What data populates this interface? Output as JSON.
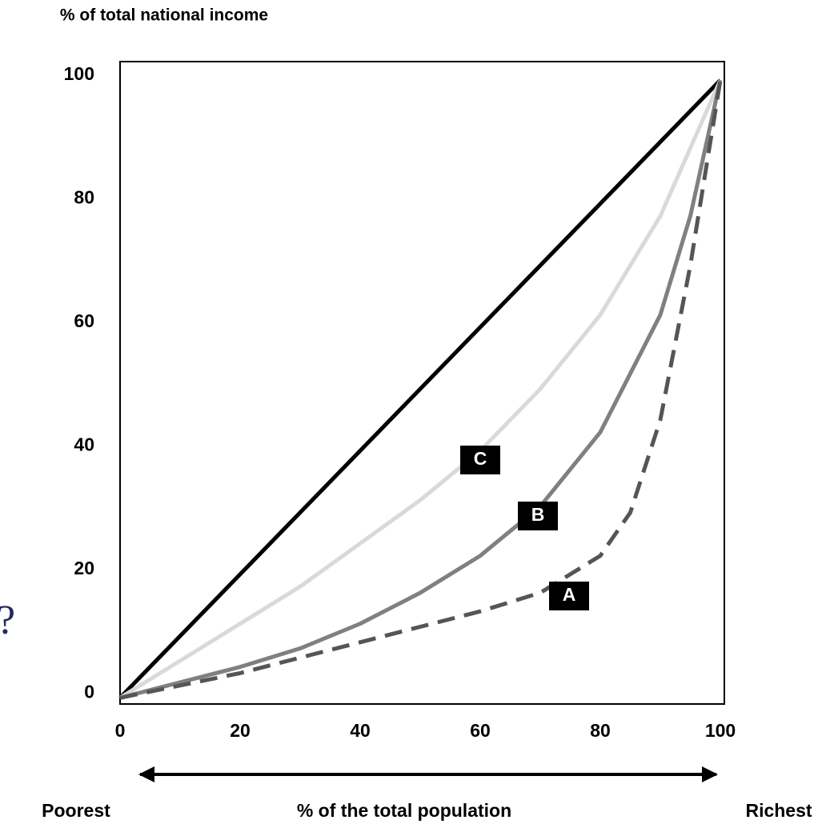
{
  "chart_data": {
    "type": "line",
    "y_label": "% of total national income",
    "x_label": "% of the total population",
    "x_left_label": "Poorest",
    "x_right_label": "Richest",
    "side_mark": "?",
    "xlim": [
      0,
      100
    ],
    "ylim": [
      -1,
      103
    ],
    "xticks": [
      0,
      20,
      40,
      60,
      80,
      100
    ],
    "yticks": [
      0,
      20,
      40,
      60,
      80,
      100
    ],
    "series": [
      {
        "color": "#000000",
        "dashed": false,
        "x": [
          0,
          100
        ],
        "values": [
          0,
          100
        ]
      },
      {
        "name": "C",
        "color": "#d9d9d9",
        "dashed": false,
        "x": [
          0,
          10,
          20,
          30,
          40,
          50,
          60,
          70,
          80,
          90,
          100
        ],
        "values": [
          0,
          6,
          12,
          18,
          25,
          32,
          40,
          50,
          62,
          78,
          100
        ]
      },
      {
        "name": "B",
        "color": "#808080",
        "dashed": false,
        "x": [
          0,
          10,
          20,
          30,
          40,
          50,
          60,
          70,
          80,
          90,
          95,
          100
        ],
        "values": [
          0,
          2.5,
          5,
          8,
          12,
          17,
          23,
          31,
          43,
          62,
          78,
          100
        ]
      },
      {
        "name": "A",
        "color": "#555555",
        "dashed": true,
        "x": [
          0,
          10,
          20,
          30,
          40,
          50,
          60,
          70,
          80,
          85,
          90,
          95,
          100
        ],
        "values": [
          0,
          2,
          4,
          6.5,
          9,
          11.5,
          14,
          17,
          23,
          30,
          45,
          70,
          100
        ]
      }
    ]
  }
}
